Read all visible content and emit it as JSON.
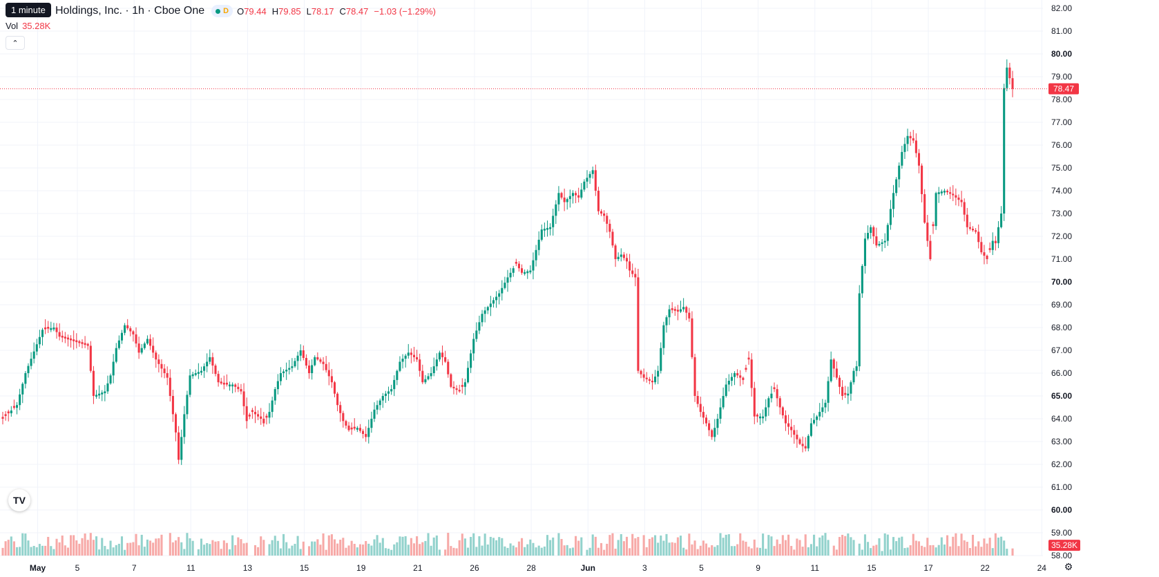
{
  "header": {
    "interval_tooltip": "1 minute",
    "symbol_title": "Holdings, Inc. · 1h · Cboe One",
    "status_letter": "D",
    "ohlc": [
      {
        "k": "O",
        "v": "79.44"
      },
      {
        "k": "H",
        "v": "79.85"
      },
      {
        "k": "L",
        "v": "78.17"
      },
      {
        "k": "C",
        "v": "78.47"
      },
      {
        "k": "",
        "v": "−1.03 (−1.29%)"
      }
    ]
  },
  "volume_legend": {
    "label": "Vol",
    "value": "35.28K"
  },
  "colors": {
    "up": "#089981",
    "down": "#f23645",
    "vol_up": "#92d2cc",
    "vol_down": "#f7a9a7",
    "grid": "#f0f3fa",
    "axis_text": "#131722"
  },
  "chart_data": {
    "type": "candlestick",
    "y_axis": {
      "min": 58,
      "max": 82,
      "ticks": [
        "82.00",
        "81.00",
        "80.00",
        "79.00",
        "78.00",
        "77.00",
        "76.00",
        "75.00",
        "74.00",
        "73.00",
        "72.00",
        "71.00",
        "70.00",
        "69.00",
        "68.00",
        "67.00",
        "66.00",
        "65.00",
        "64.00",
        "63.00",
        "62.00",
        "61.00",
        "60.00",
        "59.00",
        "58.00"
      ],
      "bold_ticks": [
        "80.00",
        "70.00",
        "65.00",
        "60.00"
      ]
    },
    "x_axis": {
      "labels": [
        "May",
        "5",
        "7",
        "11",
        "13",
        "15",
        "19",
        "21",
        "26",
        "28",
        "Jun",
        "3",
        "5",
        "9",
        "11",
        "15",
        "17",
        "22",
        "24"
      ],
      "bold_labels": [
        "May",
        "Jun"
      ],
      "label_bar_index": [
        5,
        19,
        39,
        59,
        79,
        99,
        119,
        139,
        159,
        179,
        199,
        219,
        239,
        259,
        279,
        299,
        319,
        339,
        359
      ]
    },
    "last_price": {
      "value": 78.47,
      "label": "78.47"
    },
    "last_volume": {
      "label": "35.28K"
    },
    "anchors": [
      [
        0,
        64.0
      ],
      [
        5,
        64.6
      ],
      [
        8,
        66.0
      ],
      [
        14,
        67.9
      ],
      [
        18,
        68.0
      ],
      [
        20,
        67.6
      ],
      [
        25,
        67.4
      ],
      [
        30,
        67.2
      ],
      [
        32,
        65.0
      ],
      [
        36,
        65.2
      ],
      [
        38,
        65.9
      ],
      [
        40,
        67.1
      ],
      [
        43,
        68.1
      ],
      [
        46,
        67.7
      ],
      [
        48,
        66.9
      ],
      [
        51,
        67.5
      ],
      [
        54,
        66.6
      ],
      [
        58,
        65.8
      ],
      [
        61,
        63.4
      ],
      [
        62,
        62.2
      ],
      [
        64,
        64.2
      ],
      [
        66,
        65.9
      ],
      [
        70,
        66.1
      ],
      [
        73,
        66.7
      ],
      [
        76,
        65.6
      ],
      [
        78,
        65.5
      ],
      [
        81,
        65.5
      ],
      [
        84,
        65.2
      ],
      [
        86,
        63.9
      ],
      [
        88,
        64.3
      ],
      [
        91,
        64.0
      ],
      [
        92,
        63.8
      ],
      [
        94,
        64.3
      ],
      [
        96,
        65.3
      ],
      [
        98,
        66.0
      ],
      [
        102,
        66.3
      ],
      [
        105,
        67.0
      ],
      [
        108,
        66.0
      ],
      [
        110,
        66.7
      ],
      [
        113,
        66.4
      ],
      [
        116,
        65.6
      ],
      [
        118,
        64.6
      ],
      [
        120,
        63.9
      ],
      [
        122,
        63.5
      ],
      [
        125,
        63.6
      ],
      [
        128,
        63.2
      ],
      [
        131,
        64.4
      ],
      [
        134,
        65.0
      ],
      [
        137,
        65.3
      ],
      [
        140,
        66.5
      ],
      [
        143,
        66.9
      ],
      [
        146,
        66.6
      ],
      [
        148,
        65.6
      ],
      [
        151,
        66.0
      ],
      [
        154,
        66.9
      ],
      [
        156,
        66.5
      ],
      [
        158,
        65.4
      ],
      [
        161,
        65.2
      ],
      [
        163,
        65.6
      ],
      [
        166,
        67.5
      ],
      [
        169,
        68.6
      ],
      [
        173,
        69.2
      ],
      [
        175,
        69.5
      ],
      [
        178,
        70.2
      ],
      [
        181,
        70.8
      ],
      [
        183,
        70.4
      ],
      [
        186,
        70.5
      ],
      [
        188,
        71.4
      ],
      [
        190,
        72.3
      ],
      [
        193,
        72.4
      ],
      [
        196,
        73.9
      ],
      [
        198,
        73.5
      ],
      [
        201,
        73.9
      ],
      [
        203,
        73.7
      ],
      [
        205,
        74.4
      ],
      [
        208,
        74.9
      ],
      [
        210,
        73.1
      ],
      [
        212,
        72.9
      ],
      [
        214,
        72.2
      ],
      [
        216,
        71.0
      ],
      [
        218,
        71.2
      ],
      [
        220,
        70.9
      ],
      [
        221,
        70.5
      ],
      [
        223,
        70.2
      ],
      [
        224,
        66.1
      ],
      [
        226,
        65.8
      ],
      [
        229,
        65.6
      ],
      [
        231,
        66.1
      ],
      [
        233,
        68.1
      ],
      [
        235,
        68.8
      ],
      [
        238,
        68.7
      ],
      [
        240,
        68.9
      ],
      [
        242,
        68.4
      ],
      [
        244,
        65.0
      ],
      [
        246,
        64.3
      ],
      [
        248,
        63.8
      ],
      [
        250,
        63.2
      ],
      [
        252,
        64.0
      ],
      [
        255,
        65.5
      ],
      [
        258,
        66.0
      ],
      [
        261,
        65.7
      ],
      [
        263,
        66.6
      ],
      [
        265,
        64.1
      ],
      [
        268,
        64.1
      ],
      [
        270,
        64.9
      ],
      [
        272,
        65.3
      ],
      [
        274,
        64.5
      ],
      [
        276,
        63.8
      ],
      [
        278,
        63.5
      ],
      [
        281,
        62.9
      ],
      [
        283,
        62.7
      ],
      [
        285,
        63.8
      ],
      [
        287,
        64.1
      ],
      [
        290,
        64.7
      ],
      [
        292,
        66.6
      ],
      [
        294,
        65.8
      ],
      [
        296,
        65.0
      ],
      [
        298,
        65.1
      ],
      [
        300,
        66.1
      ],
      [
        301,
        66.3
      ],
      [
        302,
        69.5
      ],
      [
        304,
        71.9
      ],
      [
        306,
        72.4
      ],
      [
        308,
        71.6
      ],
      [
        311,
        71.8
      ],
      [
        314,
        73.9
      ],
      [
        317,
        75.7
      ],
      [
        319,
        76.4
      ],
      [
        321,
        76.2
      ],
      [
        323,
        75.1
      ],
      [
        325,
        72.6
      ],
      [
        327,
        71.0
      ],
      [
        329,
        73.9
      ],
      [
        332,
        74.0
      ],
      [
        335,
        73.8
      ],
      [
        338,
        73.5
      ],
      [
        340,
        72.4
      ],
      [
        343,
        72.2
      ],
      [
        345,
        71.3
      ],
      [
        347,
        71.0
      ],
      [
        349,
        71.8
      ],
      [
        350,
        71.7
      ],
      [
        351,
        72.4
      ],
      [
        352,
        73.0
      ],
      [
        353,
        78.5
      ],
      [
        354,
        79.4
      ],
      [
        356,
        78.47
      ]
    ],
    "volume_spikes": [
      [
        57,
        56.2
      ],
      [
        58,
        57.9
      ],
      [
        68,
        56.7
      ],
      [
        87,
        56.2
      ],
      [
        88,
        57.3
      ],
      [
        93,
        57.8
      ],
      [
        107,
        56.3
      ],
      [
        155,
        57.2
      ],
      [
        177,
        58.4
      ],
      [
        195,
        57.4
      ],
      [
        205,
        57.4
      ],
      [
        225,
        57.9
      ],
      [
        292,
        58.0
      ],
      [
        301,
        57.3
      ],
      [
        310,
        58.2
      ],
      [
        331,
        58.8
      ],
      [
        354,
        58.3
      ],
      [
        355,
        57.5
      ]
    ],
    "down_bar_ranges": [
      [
        0,
        2
      ],
      [
        4,
        4
      ],
      [
        15,
        16
      ],
      [
        19,
        21
      ],
      [
        24,
        25
      ],
      [
        30,
        32
      ],
      [
        44,
        46
      ],
      [
        53,
        60
      ],
      [
        61,
        62
      ],
      [
        74,
        79
      ],
      [
        84,
        88
      ],
      [
        89,
        93
      ],
      [
        106,
        108
      ],
      [
        113,
        119
      ],
      [
        122,
        124
      ],
      [
        145,
        148
      ],
      [
        155,
        158
      ],
      [
        159,
        162
      ],
      [
        181,
        182
      ],
      [
        209,
        216
      ],
      [
        222,
        226
      ],
      [
        228,
        229
      ],
      [
        241,
        244
      ],
      [
        245,
        250
      ],
      [
        262,
        266
      ],
      [
        272,
        276
      ],
      [
        277,
        282
      ],
      [
        293,
        297
      ],
      [
        320,
        322
      ],
      [
        323,
        328
      ],
      [
        335,
        338
      ],
      [
        339,
        344
      ],
      [
        345,
        348
      ],
      [
        355,
        356
      ]
    ]
  }
}
